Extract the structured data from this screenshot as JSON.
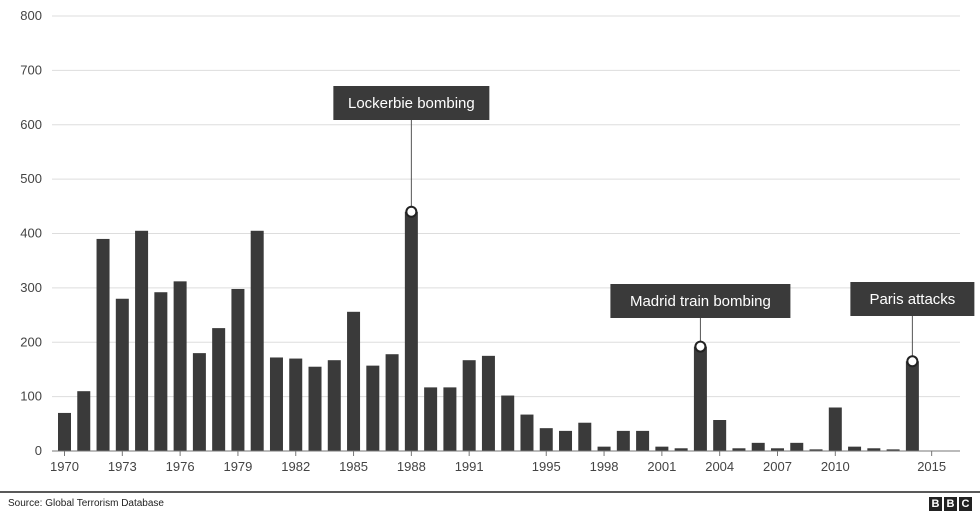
{
  "chart_data": {
    "type": "bar",
    "ylim": [
      0,
      800
    ],
    "yticks": [
      0,
      100,
      200,
      300,
      400,
      500,
      600,
      700,
      800
    ],
    "x_tick_labels": [
      "1970",
      "1973",
      "1976",
      "1979",
      "1982",
      "1985",
      "1988",
      "1991",
      "1995",
      "1998",
      "2001",
      "2004",
      "2007",
      "2010",
      "2015"
    ],
    "grid": true,
    "bar_color": "#3a3a3a",
    "values": [
      70,
      110,
      390,
      280,
      405,
      292,
      312,
      180,
      226,
      298,
      405,
      172,
      170,
      155,
      167,
      256,
      157,
      178,
      440,
      117,
      117,
      167,
      175,
      102,
      67,
      42,
      37,
      52,
      8,
      37,
      37,
      8,
      5,
      192,
      57,
      5,
      15,
      5,
      15,
      3,
      80,
      8,
      5,
      3,
      165
    ],
    "annotations": [
      {
        "label": "Lockerbie bombing",
        "value": 440
      },
      {
        "label": "Madrid train bombing",
        "value": 192
      },
      {
        "label": "Paris attacks",
        "value": 165
      }
    ]
  },
  "footer": {
    "source": "Source: Global Terrorism Database",
    "logo": [
      "B",
      "B",
      "C"
    ]
  }
}
